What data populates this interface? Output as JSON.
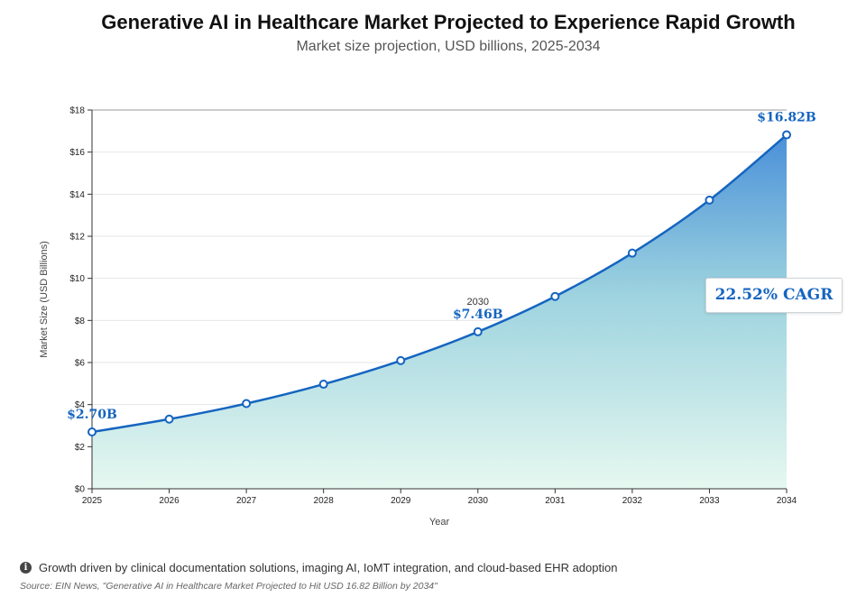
{
  "header": {
    "title": "Generative AI in Healthcare Market Projected to Experience Rapid Growth",
    "subtitle": "Market size projection, USD billions, 2025-2034"
  },
  "chart_data": {
    "type": "area",
    "x": [
      "2025",
      "2026",
      "2027",
      "2028",
      "2029",
      "2030",
      "2031",
      "2032",
      "2033",
      "2034"
    ],
    "series": [
      {
        "values": [
          2.7,
          3.31,
          4.05,
          4.97,
          6.09,
          7.46,
          9.14,
          11.2,
          13.72,
          16.82
        ]
      }
    ],
    "xlabel": "Year",
    "ylabel": "Market Size (USD Billions)",
    "ylim": [
      0,
      18
    ],
    "yticks": [
      "$0",
      "$2",
      "$4",
      "$6",
      "$8",
      "$10",
      "$12",
      "$14",
      "$16",
      "$18"
    ],
    "grid": true,
    "labels": [
      {
        "index": 0,
        "text": "$2.70B"
      },
      {
        "index": 5,
        "text": "$7.46B",
        "note": "2030"
      },
      {
        "index": 9,
        "text": "$16.82B"
      }
    ],
    "annotation": "22.52% CAGR",
    "colors": {
      "line": "#1565c0",
      "fill_top": "#4a90d9",
      "fill_mid": "#9dd3df",
      "fill_bottom": "#e6f8f0"
    }
  },
  "footer": {
    "note_icon": "info-icon",
    "note": "Growth driven by clinical documentation solutions, imaging AI, IoMT integration, and cloud-based EHR adoption",
    "source": "Source: EIN News, \"Generative AI in Healthcare Market Projected to Hit USD 16.82 Billion by 2034\""
  }
}
